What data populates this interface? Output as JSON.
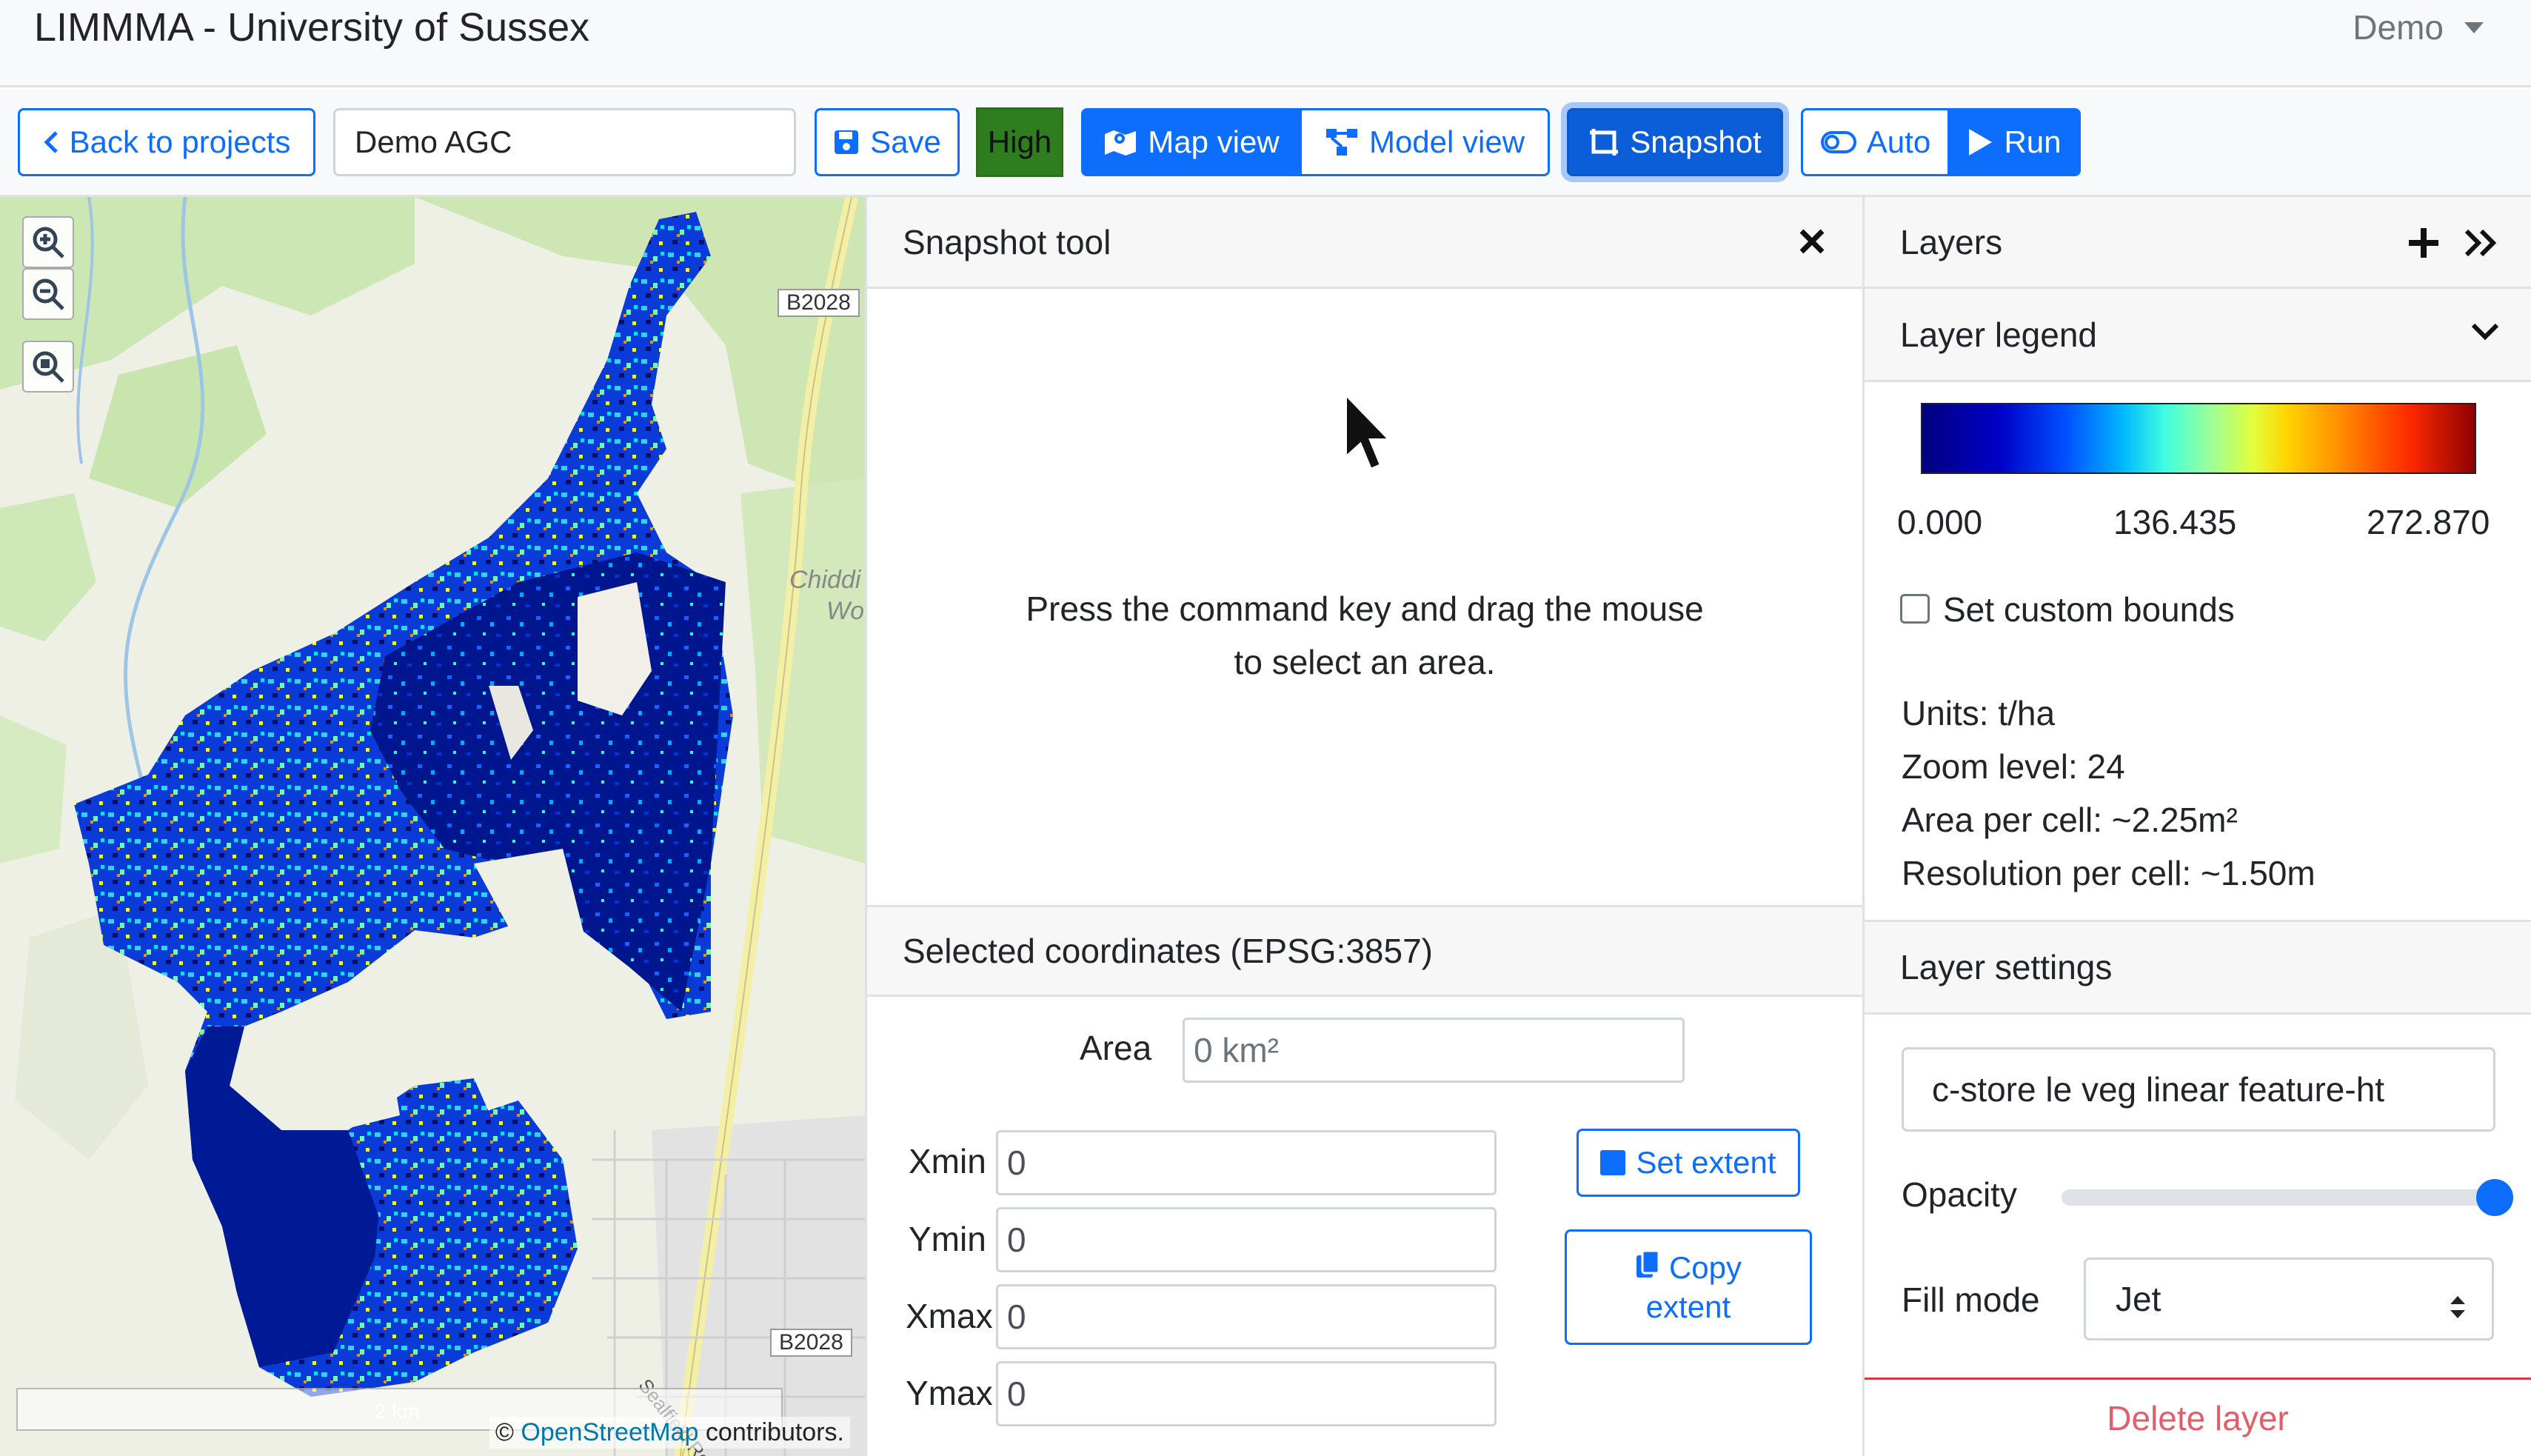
{
  "app": {
    "title": "LIMMMA - University of Sussex",
    "user_menu": "Demo"
  },
  "toolbar": {
    "back_label": "Back to projects",
    "project_name": "Demo AGC",
    "save_label": "Save",
    "quality_badge": "High",
    "map_view_label": "Map view",
    "model_view_label": "Model view",
    "snapshot_label": "Snapshot",
    "auto_label": "Auto",
    "run_label": "Run"
  },
  "map": {
    "road_labels": [
      "B2028",
      "B2028"
    ],
    "place_label_1": "Chiddi",
    "place_label_2": "Wo",
    "street_label": "Sealfield Road",
    "scale_label": "2 km",
    "attribution_prefix": "©",
    "attribution_link": "OpenStreetMap",
    "attribution_suffix": "contributors."
  },
  "snapshot": {
    "title": "Snapshot tool",
    "instruction": "Press the command key and drag the mouse to select an area.",
    "coords_title": "Selected coordinates (EPSG:3857)",
    "area_label": "Area",
    "area_value": "0 km²",
    "xmin_label": "Xmin",
    "xmin_value": "0",
    "ymin_label": "Ymin",
    "ymin_value": "0",
    "xmax_label": "Xmax",
    "xmax_value": "0",
    "ymax_label": "Ymax",
    "ymax_value": "0",
    "set_extent_label": "Set extent",
    "copy_extent_label_1": "Copy",
    "copy_extent_label_2": "extent"
  },
  "layers": {
    "title": "Layers",
    "legend_title": "Layer legend",
    "legend_min": "0.000",
    "legend_mid": "136.435",
    "legend_max": "272.870",
    "custom_bounds_label": "Set custom bounds",
    "units": "Units: t/ha",
    "zoom_level": "Zoom level: 24",
    "area_per_cell": "Area per cell: ~2.25m²",
    "resolution": "Resolution per cell: ~1.50m",
    "settings_title": "Layer settings",
    "layer_name": "c-store le veg linear feature-ht",
    "opacity_label": "Opacity",
    "opacity_value": 1.0,
    "fill_mode_label": "Fill mode",
    "fill_mode_value": "Jet",
    "delete_label": "Delete layer"
  },
  "colors": {
    "primary": "#0d6efd",
    "high_badge": "#2e7d1e",
    "danger": "#dc3545",
    "colormap": "jet"
  }
}
